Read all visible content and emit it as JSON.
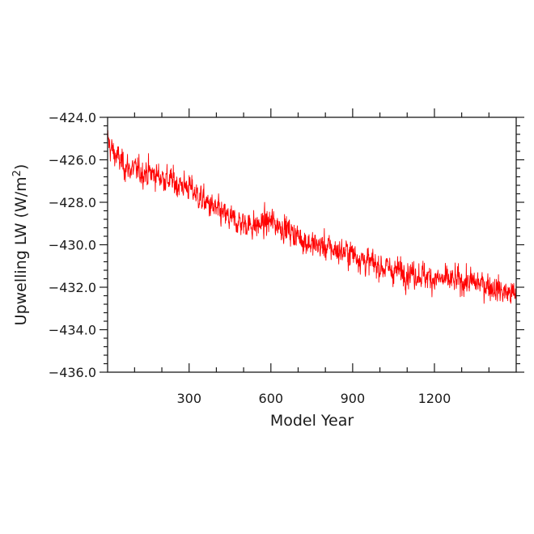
{
  "chart_data": {
    "type": "line",
    "title": "",
    "xlabel": "Model Year",
    "ylabel": "Upwelling LW (W/m²)",
    "ylabel_parts": {
      "base": "Upwelling LW (W/m",
      "sup": "2",
      "close": ")"
    },
    "xlim": [
      1,
      1500
    ],
    "ylim": [
      -436.0,
      -424.0
    ],
    "xticks": [
      300,
      600,
      900,
      1200
    ],
    "xtick_labels": [
      "300",
      "600",
      "900",
      "1200"
    ],
    "x_minor_step": 100,
    "yticks": [
      -424.0,
      -426.0,
      -428.0,
      -430.0,
      -432.0,
      -434.0,
      -436.0
    ],
    "ytick_labels": [
      "−424.0",
      "−426.0",
      "−428.0",
      "−430.0",
      "−432.0",
      "−434.0",
      "−436.0"
    ],
    "y_minor_step": 0.4,
    "grid": false,
    "series_color": "#ff0000",
    "series": [
      {
        "x": [
          1,
          10,
          25,
          50,
          75,
          100,
          150,
          200,
          250,
          300,
          350,
          400,
          450,
          500,
          550,
          600,
          650,
          700,
          750,
          800,
          850,
          900,
          950,
          1000,
          1050,
          1100,
          1150,
          1200,
          1250,
          1300,
          1350,
          1400,
          1450,
          1500
        ],
        "values": [
          -425.0,
          -425.4,
          -425.7,
          -426.1,
          -426.4,
          -426.5,
          -426.6,
          -426.8,
          -427.1,
          -427.3,
          -427.9,
          -428.4,
          -428.8,
          -429.0,
          -429.1,
          -428.9,
          -429.2,
          -429.6,
          -430.0,
          -430.1,
          -430.3,
          -430.4,
          -430.8,
          -431.0,
          -431.2,
          -431.3,
          -431.4,
          -431.6,
          -431.7,
          -431.7,
          -431.8,
          -431.9,
          -432.2,
          -432.4
        ]
      }
    ]
  }
}
